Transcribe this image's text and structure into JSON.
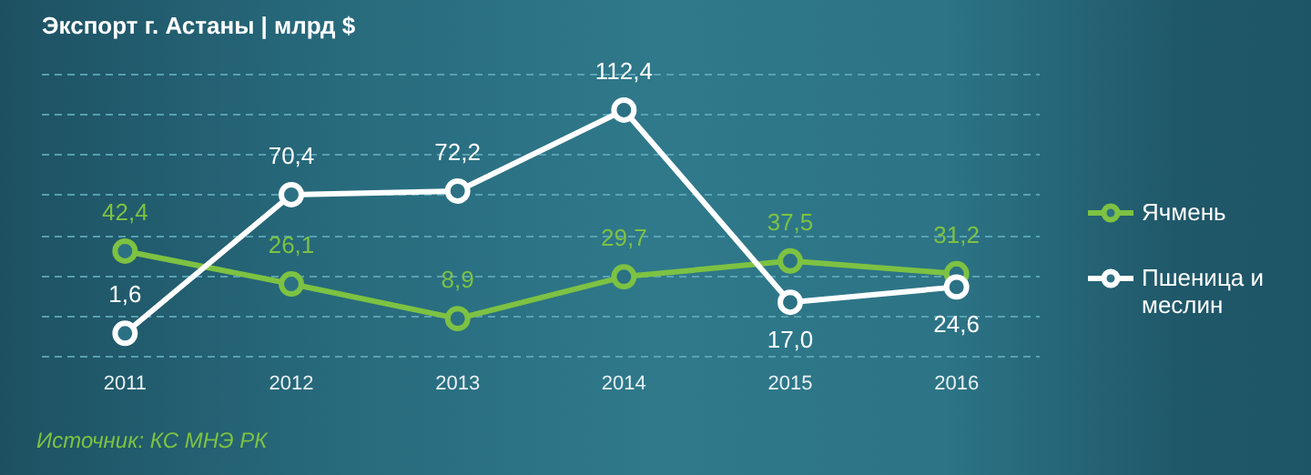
{
  "chart_data": {
    "type": "line",
    "title": "Экспорт г. Астаны | млрд $",
    "categories": [
      "2011",
      "2012",
      "2013",
      "2014",
      "2015",
      "2016"
    ],
    "series": [
      {
        "name": "Ячмень",
        "color": "#7dc242",
        "values": [
          42.4,
          26.1,
          8.9,
          29.7,
          37.5,
          31.2
        ],
        "value_labels": [
          "42,4",
          "26,1",
          "8,9",
          "29,7",
          "37,5",
          "31,2"
        ]
      },
      {
        "name": "Пшеница и меслин",
        "color": "#ffffff",
        "values": [
          1.6,
          70.4,
          72.2,
          112.4,
          17.0,
          24.6
        ],
        "value_labels": [
          "1,6",
          "70,4",
          "72,2",
          "112,4",
          "17,0",
          "24,6"
        ]
      }
    ],
    "ylim": [
      -10,
      130
    ],
    "yticks": [
      {
        "value": -10,
        "label": null
      },
      {
        "value": 10,
        "label": null
      },
      {
        "value": 30,
        "label": null
      },
      {
        "value": 50,
        "label": null
      },
      {
        "value": 70,
        "label": null
      },
      {
        "value": 90,
        "label": null
      },
      {
        "value": 110,
        "label": null
      },
      {
        "value": 130,
        "label": null
      }
    ],
    "grid": "y",
    "legend": "right",
    "tick_labels": "x",
    "marker": "circle",
    "annotations": [
      "Источник: КС МНЭ РК"
    ]
  }
}
